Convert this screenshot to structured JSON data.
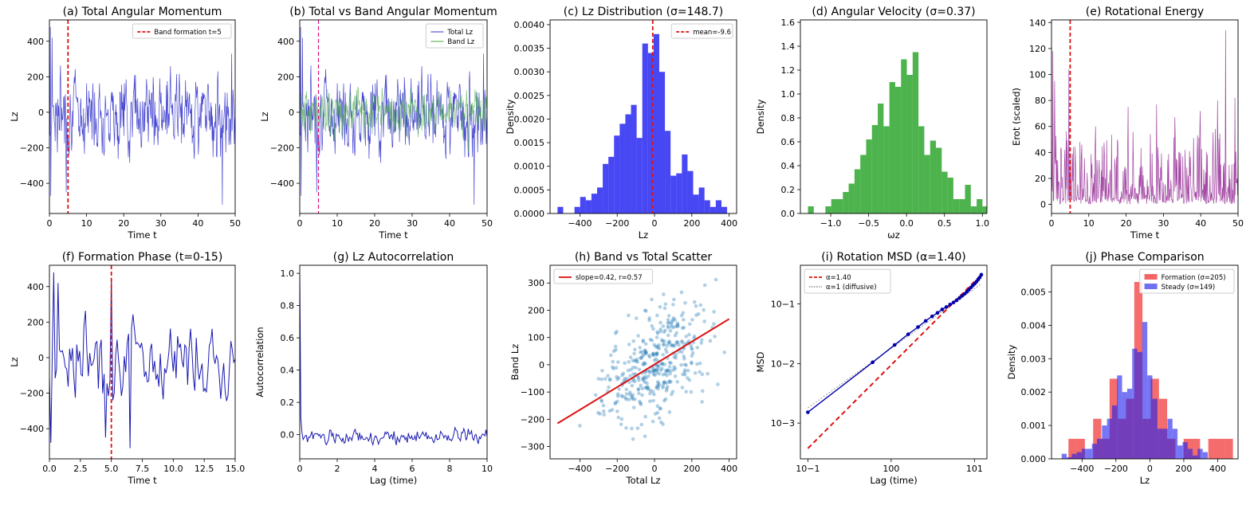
{
  "figure": {
    "background": "#ffffff"
  },
  "panels": [
    {
      "id": "a",
      "title": "(a) Total Angular Momentum",
      "xlabel": "Time t",
      "ylabel": "Lz",
      "xlim": [
        0,
        50
      ],
      "ylim": [
        -570,
        520
      ],
      "xticks": [
        0,
        10,
        20,
        30,
        40,
        50
      ],
      "yticks": [
        -400,
        -200,
        0,
        200,
        400
      ],
      "chart_data": {
        "type": "line",
        "series": [
          {
            "name": "Total Lz",
            "color": "#3333cc",
            "x_start": 0,
            "x_end": 50,
            "n": 420,
            "seed": 7,
            "amplitude": 150,
            "extremes": [
              [
                0.2,
                480
              ],
              [
                0.4,
                -470
              ],
              [
                0.7,
                420
              ],
              [
                4.5,
                -450
              ],
              [
                46.5,
                -520
              ],
              [
                49.0,
                330
              ]
            ]
          }
        ],
        "vlines": [
          {
            "x": 5,
            "color": "#dd1111",
            "dash": true
          }
        ]
      },
      "legend": [
        {
          "label": "Band formation t=5",
          "color": "#dd1111",
          "style": "dash"
        }
      ]
    },
    {
      "id": "b",
      "title": "(b) Total vs Band Angular Momentum",
      "xlabel": "Time t",
      "ylabel": "Lz",
      "xlim": [
        0,
        50
      ],
      "ylim": [
        -570,
        520
      ],
      "xticks": [
        0,
        10,
        20,
        30,
        40,
        50
      ],
      "yticks": [
        -400,
        -200,
        0,
        200,
        400
      ],
      "chart_data": {
        "type": "line",
        "series": [
          {
            "name": "Total Lz",
            "color": "#3333cc",
            "x_start": 0,
            "x_end": 50,
            "n": 420,
            "seed": 7,
            "amplitude": 150,
            "extremes": [
              [
                0.2,
                480
              ],
              [
                0.4,
                -470
              ],
              [
                0.7,
                420
              ],
              [
                4.5,
                -450
              ],
              [
                46.5,
                -520
              ],
              [
                49.0,
                330
              ]
            ]
          },
          {
            "name": "Band Lz",
            "color": "#44aa44",
            "x_start": 0,
            "x_end": 50,
            "n": 420,
            "seed": 11,
            "amplitude": 95,
            "extremes": []
          }
        ],
        "vlines": [
          {
            "x": 5,
            "color": "#dd1177",
            "dash": true
          }
        ]
      },
      "legend": [
        {
          "label": "Total Lz",
          "color": "#3333cc",
          "style": "line"
        },
        {
          "label": "Band Lz",
          "color": "#44aa44",
          "style": "line"
        }
      ]
    },
    {
      "id": "c",
      "title": "(c) Lz Distribution (σ=148.7)",
      "xlabel": "Lz",
      "ylabel": "Density",
      "xlim": [
        -560,
        440
      ],
      "ylim": [
        0,
        0.0041
      ],
      "xticks": [
        -400,
        -200,
        0,
        200,
        400
      ],
      "yticks": [
        0,
        0.0005,
        0.001,
        0.0015,
        0.002,
        0.0025,
        0.003,
        0.0035,
        0.004
      ],
      "ytick_labels": [
        "0.0000",
        "0.0005",
        "0.0010",
        "0.0015",
        "0.0020",
        "0.0025",
        "0.0030",
        "0.0035",
        "0.0040"
      ],
      "chart_data": {
        "type": "bar",
        "series": [
          {
            "name": "Lz",
            "color": "#0000ee",
            "opacity": 0.72,
            "bin_start": -520,
            "bin_width": 30.3,
            "values": [
              0.00014,
              0,
              0,
              0.00014,
              0.00035,
              0.00028,
              0.00042,
              0.00055,
              0.00105,
              0.0012,
              0.00165,
              0.0019,
              0.0021,
              0.0023,
              0.0016,
              0.0036,
              0.0034,
              0.0038,
              0.003,
              0.00175,
              0.0008,
              0.00085,
              0.00125,
              0.0009,
              0.0004,
              0.00055,
              0.00028,
              0.00014,
              0.00028,
              0.00014
            ]
          }
        ],
        "vlines": [
          {
            "x": -9.6,
            "color": "#dd1111",
            "dash": true
          }
        ]
      },
      "legend": [
        {
          "label": "mean=-9.6",
          "color": "#dd1111",
          "style": "dash"
        }
      ]
    },
    {
      "id": "d",
      "title": "(d) Angular Velocity (σ=0.37)",
      "xlabel": "ωz",
      "ylabel": "Density",
      "xlim": [
        -1.4,
        1.06
      ],
      "ylim": [
        0,
        1.62
      ],
      "xticks": [
        -1.0,
        -0.5,
        0.0,
        0.5,
        1.0
      ],
      "xtick_labels": [
        "−1.0",
        "−0.5",
        "0.0",
        "0.5",
        "1.0"
      ],
      "yticks": [
        0,
        0.2,
        0.4,
        0.6,
        0.8,
        1.0,
        1.2,
        1.4,
        1.6
      ],
      "ytick_labels": [
        "0.0",
        "0.2",
        "0.4",
        "0.6",
        "0.8",
        "1.0",
        "1.2",
        "1.4",
        "1.6"
      ],
      "chart_data": {
        "type": "bar",
        "series": [
          {
            "name": "ωz",
            "color": "#119911",
            "opacity": 0.75,
            "bin_start": -1.3,
            "bin_width": 0.0767,
            "values": [
              0.06,
              0,
              0,
              0.06,
              0.12,
              0.12,
              0.18,
              0.25,
              0.37,
              0.49,
              0.62,
              0.74,
              0.92,
              0.73,
              1.1,
              1.06,
              1.29,
              1.16,
              1.35,
              0.73,
              0.49,
              0.61,
              0.55,
              0.35,
              0.3,
              0.12,
              0.12,
              0.24,
              0.06,
              0.12,
              0.06
            ]
          }
        ]
      },
      "legend": []
    },
    {
      "id": "e",
      "title": "(e) Rotational Energy",
      "xlabel": "Time t",
      "ylabel": "Erot (scaled)",
      "xlim": [
        0,
        50
      ],
      "ylim": [
        -7,
        142
      ],
      "xticks": [
        0,
        10,
        20,
        30,
        40,
        50
      ],
      "yticks": [
        0,
        20,
        40,
        60,
        80,
        100,
        120,
        140
      ],
      "chart_data": {
        "type": "line",
        "series": [
          {
            "name": "Erot",
            "color": "#993399",
            "x_start": 0,
            "x_end": 50,
            "n": 420,
            "seed": 23,
            "amplitude": 14,
            "extremes": [
              [
                0.3,
                118
              ],
              [
                0.8,
                95
              ],
              [
                4.6,
                104
              ],
              [
                11.8,
                60
              ],
              [
                20.5,
                75
              ],
              [
                28.2,
                77
              ],
              [
                33.0,
                67
              ],
              [
                39.8,
                72
              ],
              [
                44.5,
                80
              ],
              [
                46.6,
                134
              ],
              [
                49.2,
                82
              ]
            ]
          }
        ],
        "vlines": [
          {
            "x": 5,
            "color": "#dd1111",
            "dash": true
          }
        ]
      },
      "legend": []
    },
    {
      "id": "f",
      "title": "(f) Formation Phase (t=0-15)",
      "xlabel": "Time t",
      "ylabel": "Lz",
      "xlim": [
        0,
        15
      ],
      "ylim": [
        -570,
        520
      ],
      "xticks": [
        0,
        2.5,
        5.0,
        7.5,
        10.0,
        12.5,
        15.0
      ],
      "xtick_labels": [
        "0.0",
        "2.5",
        "5.0",
        "7.5",
        "10.0",
        "12.5",
        "15.0"
      ],
      "yticks": [
        -400,
        -200,
        0,
        200,
        400
      ],
      "chart_data": {
        "type": "line",
        "series": [
          {
            "name": "Lz",
            "color": "#0000aa",
            "x_start": 0,
            "x_end": 15,
            "n": 130,
            "seed": 7,
            "amplitude": 150,
            "extremes": [
              [
                0.1,
                -480
              ],
              [
                0.4,
                480
              ],
              [
                0.7,
                420
              ],
              [
                4.5,
                -450
              ],
              [
                5.0,
                450
              ],
              [
                6.5,
                -510
              ]
            ]
          }
        ],
        "vlines": [
          {
            "x": 5,
            "color": "#dd1111",
            "dash": true
          }
        ]
      },
      "legend": []
    },
    {
      "id": "g",
      "title": "(g) Lz Autocorrelation",
      "xlabel": "Lag (time)",
      "ylabel": "Autocorrelation",
      "xlim": [
        0,
        10
      ],
      "ylim": [
        -0.15,
        1.05
      ],
      "xticks": [
        0,
        2,
        4,
        6,
        8,
        10
      ],
      "yticks": [
        0,
        0.2,
        0.4,
        0.6,
        0.8,
        1.0
      ],
      "ytick_labels": [
        "0.0",
        "0.2",
        "0.4",
        "0.6",
        "0.8",
        "1.0"
      ],
      "chart_data": {
        "type": "line",
        "series": [
          {
            "name": "Autocorrelation",
            "color": "#0000aa",
            "x_start": 0,
            "x_end": 10,
            "n": 170,
            "seed": 31,
            "amplitude": 0.03,
            "offset": -0.01,
            "extremes": [
              [
                0,
                1.0
              ],
              [
                0.06,
                0.1
              ]
            ]
          }
        ]
      },
      "legend": []
    },
    {
      "id": "h",
      "title": "(h) Band vs Total Scatter",
      "xlabel": "Total Lz",
      "ylabel": "Band Lz",
      "xlim": [
        -560,
        440
      ],
      "ylim": [
        -345,
        365
      ],
      "xticks": [
        -400,
        -200,
        0,
        200,
        400
      ],
      "yticks": [
        -300,
        -200,
        -100,
        0,
        100,
        200,
        300
      ],
      "chart_data": {
        "type": "scatter",
        "series": [
          {
            "name": "points",
            "color": "#1f77b4",
            "n": 400,
            "seed": 5,
            "slope": 0.42,
            "sx": 150,
            "noise": 100
          }
        ],
        "fit": {
          "slope": 0.42,
          "intercept": 0,
          "x_range": [
            -520,
            400
          ],
          "y_range": [
            -215,
            168
          ],
          "color": "#dd1111"
        }
      },
      "legend": [
        {
          "label": "slope=0.42, r=0.57",
          "color": "#dd1111",
          "style": "line"
        }
      ]
    },
    {
      "id": "i",
      "title": "(i) Rotation MSD (α=1.40)",
      "xlabel": "Lag (time)",
      "ylabel": "MSD",
      "log": true,
      "xlim_log": [
        -1.09,
        1.15
      ],
      "ylim_log": [
        -3.6,
        -0.35
      ],
      "xticks_log": [
        -1,
        0,
        1
      ],
      "xtick_labels": [
        "10−1",
        "100",
        "101"
      ],
      "yticks_log": [
        -3,
        -2,
        -1
      ],
      "ytick_labels": [
        "10−3",
        "10−2",
        "10−1"
      ],
      "chart_data": {
        "type": "line",
        "msd_points": {
          "x": [
            0.1,
            0.6,
            1.1,
            1.6,
            2.1,
            2.6,
            3.1,
            3.6,
            4.1,
            4.6,
            5.1,
            5.6,
            6.1,
            6.6,
            7.1,
            7.6,
            8.1,
            8.6,
            9.1,
            9.6,
            10.1,
            10.6,
            11.1,
            11.6,
            12.1
          ],
          "y": [
            0.00152,
            0.0105,
            0.0205,
            0.031,
            0.041,
            0.052,
            0.062,
            0.071,
            0.081,
            0.089,
            0.098,
            0.106,
            0.115,
            0.126,
            0.137,
            0.148,
            0.16,
            0.174,
            0.19,
            0.205,
            0.22,
            0.238,
            0.258,
            0.28,
            0.31
          ],
          "color": "#0000aa"
        },
        "fit_alpha": {
          "label": "α=1.40",
          "alpha": 1.4,
          "anchor_x": 12.1,
          "anchor_y": 0.31,
          "x_range": [
            0.1,
            12.1
          ],
          "color": "#dd1111"
        },
        "ref_alpha1": {
          "label": "α=1 (diffusive)",
          "alpha": 1.0,
          "anchor_x": 0.1,
          "anchor_y": 0.0018,
          "x_range": [
            0.1,
            12.1
          ],
          "color": "#999999"
        }
      },
      "legend": [
        {
          "label": "α=1.40",
          "color": "#dd1111",
          "style": "dash"
        },
        {
          "label": "α=1 (diffusive)",
          "color": "#999999",
          "style": "dot"
        }
      ]
    },
    {
      "id": "j",
      "title": "(j) Phase Comparison",
      "xlabel": "Lz",
      "ylabel": "Density",
      "xlim": [
        -580,
        520
      ],
      "ylim": [
        0,
        0.0058
      ],
      "xticks": [
        -400,
        -200,
        0,
        200,
        400
      ],
      "yticks": [
        0,
        0.001,
        0.002,
        0.003,
        0.004,
        0.005
      ],
      "ytick_labels": [
        "0.000",
        "0.001",
        "0.002",
        "0.003",
        "0.004",
        "0.005"
      ],
      "chart_data": {
        "type": "bar",
        "series": [
          {
            "name": "Formation (σ=205)",
            "color": "#ee1111",
            "opacity": 0.62,
            "bin_start": -480,
            "bin_width": 48.5,
            "values": [
              0.0006,
              0.0006,
              0,
              0.0012,
              0.0006,
              0.0024,
              0.0012,
              0.0018,
              0.0053,
              0.0012,
              0.0024,
              0.0018,
              0.0006,
              0,
              0.0006,
              0.0006,
              0,
              0.0006,
              0.0006,
              0.0006
            ]
          },
          {
            "name": "Steady (σ=149)",
            "color": "#2222ee",
            "opacity": 0.62,
            "bin_start": -520,
            "bin_width": 29.7,
            "values": [
              0.00015,
              5e-05,
              0.00015,
              0.0002,
              0.0003,
              0.0003,
              0.00045,
              0.0006,
              0.001,
              0.0012,
              0.0016,
              0.0025,
              0.002,
              0.0021,
              0.0033,
              0.0032,
              0.0041,
              0.0025,
              0.0018,
              0.0009,
              0.0009,
              0.0012,
              0.0009,
              0.0004,
              0.0005,
              0.0003,
              0.0001,
              0.0003,
              0.0002
            ]
          }
        ]
      },
      "legend": [
        {
          "label": "Formation (σ=205)",
          "color": "#ee1111",
          "style": "box"
        },
        {
          "label": "Steady (σ=149)",
          "color": "#2222ee",
          "style": "box"
        }
      ]
    }
  ]
}
